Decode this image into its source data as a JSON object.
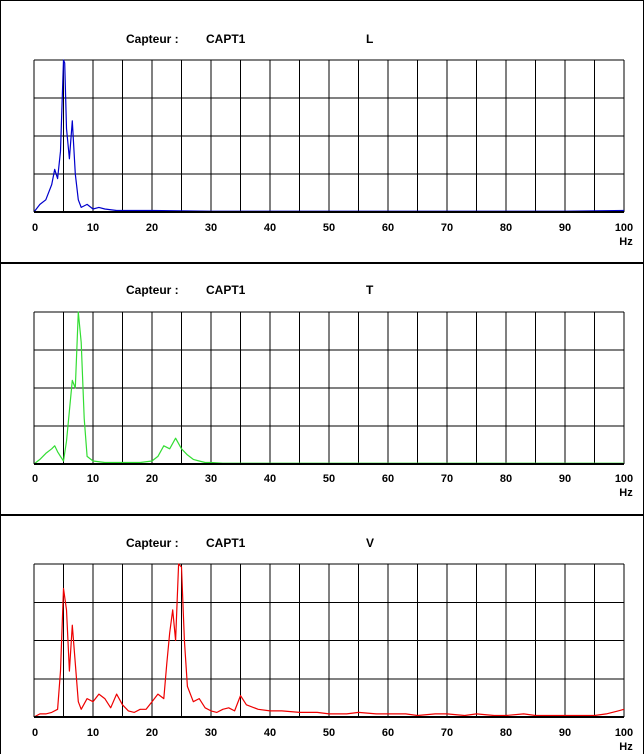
{
  "chart_data": [
    {
      "type": "line",
      "sensor_label": "Capteur :",
      "sensor": "CAPT1",
      "axis_name": "L",
      "xlabel": "Hz",
      "x_ticks": [
        "0",
        "10",
        "20",
        "30",
        "40",
        "50",
        "60",
        "70",
        "80",
        "90",
        "100"
      ],
      "xlim": [
        0,
        100
      ],
      "ylim": [
        0,
        1
      ],
      "grid": true,
      "color": "#0000cc",
      "series": [
        {
          "x": [
            0,
            1,
            2,
            3,
            3.5,
            4,
            4.5,
            5,
            5.2,
            5.5,
            6,
            6.5,
            7,
            7.5,
            8,
            9,
            10,
            11,
            12,
            14,
            16,
            20,
            30,
            40,
            50,
            60,
            70,
            80,
            90,
            100
          ],
          "y": [
            0.0,
            0.05,
            0.08,
            0.18,
            0.28,
            0.22,
            0.4,
            1.0,
            0.98,
            0.55,
            0.35,
            0.6,
            0.25,
            0.08,
            0.03,
            0.05,
            0.02,
            0.03,
            0.02,
            0.01,
            0.01,
            0.01,
            0.005,
            0.005,
            0.005,
            0.005,
            0.005,
            0.005,
            0.005,
            0.01
          ]
        }
      ]
    },
    {
      "type": "line",
      "sensor_label": "Capteur :",
      "sensor": "CAPT1",
      "axis_name": "T",
      "xlabel": "Hz",
      "x_ticks": [
        "0",
        "10",
        "20",
        "30",
        "40",
        "50",
        "60",
        "70",
        "80",
        "90",
        "100"
      ],
      "xlim": [
        0,
        100
      ],
      "ylim": [
        0,
        1
      ],
      "grid": true,
      "color": "#33dd33",
      "series": [
        {
          "x": [
            0,
            1,
            2,
            3,
            3.5,
            4,
            4.5,
            5,
            5.5,
            6,
            6.5,
            7,
            7.5,
            8,
            8.5,
            9,
            10,
            12,
            15,
            18,
            20,
            21,
            22,
            23,
            24,
            25,
            26,
            27,
            28,
            29,
            30,
            32,
            40,
            50,
            60,
            70,
            80,
            90,
            100
          ],
          "y": [
            0.0,
            0.03,
            0.07,
            0.1,
            0.12,
            0.08,
            0.05,
            0.02,
            0.15,
            0.35,
            0.55,
            0.5,
            1.0,
            0.8,
            0.3,
            0.05,
            0.02,
            0.01,
            0.01,
            0.01,
            0.02,
            0.05,
            0.12,
            0.1,
            0.17,
            0.1,
            0.06,
            0.03,
            0.02,
            0.01,
            0.01,
            0.005,
            0.005,
            0.005,
            0.005,
            0.005,
            0.005,
            0.005,
            0.005
          ]
        }
      ]
    },
    {
      "type": "line",
      "sensor_label": "Capteur :",
      "sensor": "CAPT1",
      "axis_name": "V",
      "xlabel": "Hz",
      "x_ticks": [
        "0",
        "10",
        "20",
        "30",
        "40",
        "50",
        "60",
        "70",
        "80",
        "90",
        "100"
      ],
      "xlim": [
        0,
        100
      ],
      "ylim": [
        0,
        1
      ],
      "grid": true,
      "color": "#ee0000",
      "series": [
        {
          "x": [
            0,
            1,
            2,
            3,
            4,
            4.5,
            5,
            5.5,
            6,
            6.5,
            7,
            7.5,
            8,
            9,
            10,
            11,
            12,
            13,
            14,
            15,
            16,
            17,
            18,
            19,
            20,
            21,
            22,
            22.5,
            23,
            23.5,
            24,
            24.5,
            25,
            25.5,
            26,
            27,
            28,
            29,
            30,
            31,
            32,
            33,
            34,
            35,
            36,
            38,
            40,
            42,
            45,
            48,
            50,
            53,
            55,
            58,
            60,
            63,
            65,
            68,
            70,
            73,
            75,
            78,
            80,
            83,
            85,
            88,
            90,
            93,
            95,
            97,
            98,
            99,
            100
          ],
          "y": [
            0.0,
            0.02,
            0.02,
            0.03,
            0.05,
            0.3,
            0.84,
            0.7,
            0.3,
            0.6,
            0.35,
            0.1,
            0.05,
            0.12,
            0.1,
            0.15,
            0.12,
            0.06,
            0.15,
            0.08,
            0.04,
            0.03,
            0.05,
            0.05,
            0.1,
            0.15,
            0.12,
            0.35,
            0.55,
            0.7,
            0.5,
            1.0,
            0.98,
            0.5,
            0.2,
            0.1,
            0.12,
            0.06,
            0.04,
            0.03,
            0.05,
            0.06,
            0.04,
            0.14,
            0.08,
            0.05,
            0.04,
            0.04,
            0.03,
            0.03,
            0.02,
            0.02,
            0.03,
            0.02,
            0.02,
            0.02,
            0.01,
            0.02,
            0.02,
            0.01,
            0.02,
            0.01,
            0.01,
            0.02,
            0.01,
            0.01,
            0.01,
            0.01,
            0.01,
            0.02,
            0.03,
            0.04,
            0.05
          ]
        }
      ]
    }
  ]
}
